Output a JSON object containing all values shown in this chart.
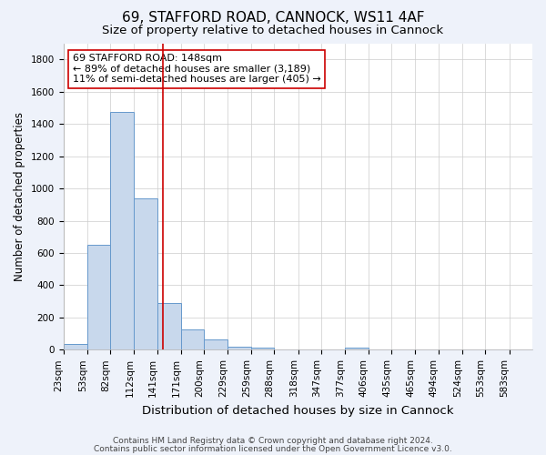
{
  "title_line1": "69, STAFFORD ROAD, CANNOCK, WS11 4AF",
  "title_line2": "Size of property relative to detached houses in Cannock",
  "xlabel": "Distribution of detached houses by size in Cannock",
  "ylabel": "Number of detached properties",
  "footnote1": "Contains HM Land Registry data © Crown copyright and database right 2024.",
  "footnote2": "Contains public sector information licensed under the Open Government Licence v3.0.",
  "annotation_line1": "69 STAFFORD ROAD: 148sqm",
  "annotation_line2": "← 89% of detached houses are smaller (3,189)",
  "annotation_line3": "11% of semi-detached houses are larger (405) →",
  "property_size": 148,
  "bins": [
    23,
    53,
    82,
    112,
    141,
    171,
    200,
    229,
    259,
    288,
    318,
    347,
    377,
    406,
    435,
    465,
    494,
    524,
    553,
    583,
    612
  ],
  "counts": [
    37,
    652,
    1474,
    937,
    290,
    128,
    62,
    20,
    12,
    4,
    3,
    2,
    14,
    0,
    0,
    0,
    0,
    0,
    0,
    0
  ],
  "bar_color": "#c8d8ec",
  "bar_edge_color": "#6699cc",
  "vline_color": "#cc0000",
  "vline_x": 148,
  "ylim": [
    0,
    1900
  ],
  "yticks": [
    0,
    200,
    400,
    600,
    800,
    1000,
    1200,
    1400,
    1600,
    1800
  ],
  "bg_color": "#eef2fa",
  "plot_bg_color": "#ffffff",
  "grid_color": "#cccccc",
  "annotation_box_color": "#ffffff",
  "annotation_box_edge": "#cc0000",
  "title1_fontsize": 11,
  "title2_fontsize": 9.5,
  "xlabel_fontsize": 9.5,
  "ylabel_fontsize": 8.5,
  "tick_fontsize": 7.5,
  "annotation_fontsize": 8,
  "footnote_fontsize": 6.5
}
